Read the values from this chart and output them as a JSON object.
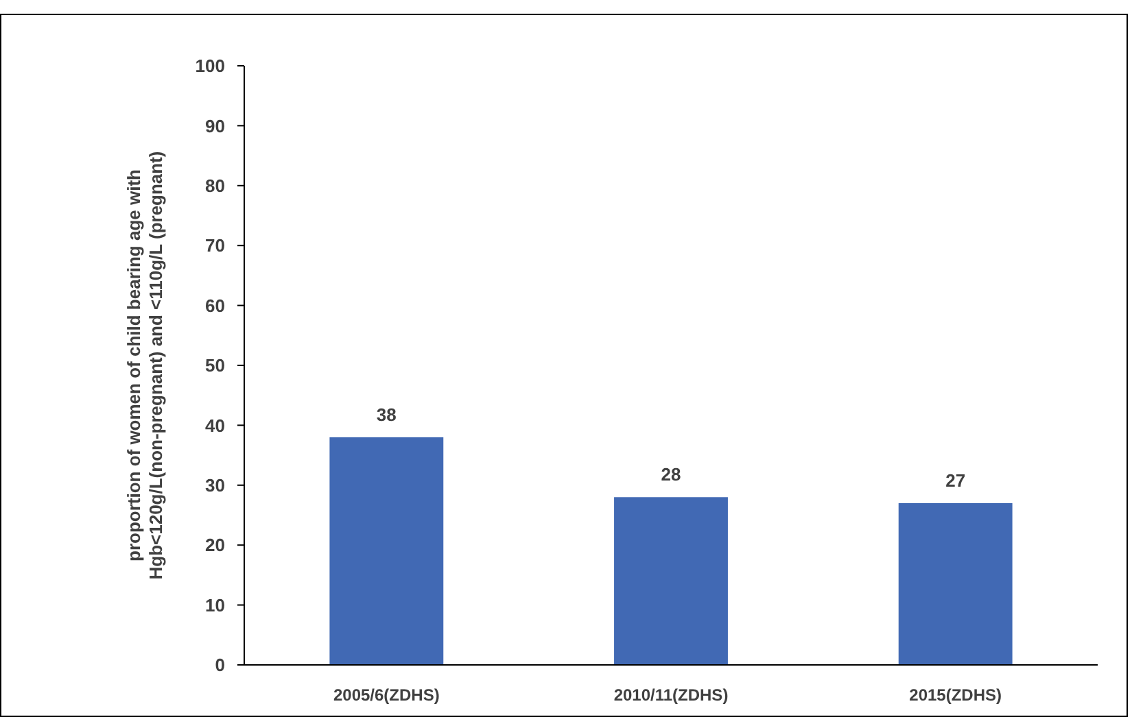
{
  "chart_data": {
    "type": "bar",
    "ylabel": "proportion of women of child bearing age with\nHgb<120g/L(non-pregnant) and <110g/L (pregnant)",
    "categories": [
      "2005/6(ZDHS)",
      "2010/11(ZDHS)",
      "2015(ZDHS)"
    ],
    "values": [
      38,
      28,
      27
    ],
    "color": "#4169b4",
    "ylim": [
      0,
      100
    ],
    "yticks": [
      0,
      10,
      20,
      30,
      40,
      50,
      60,
      70,
      80,
      90,
      100
    ],
    "data_labels": true,
    "grid": false
  }
}
